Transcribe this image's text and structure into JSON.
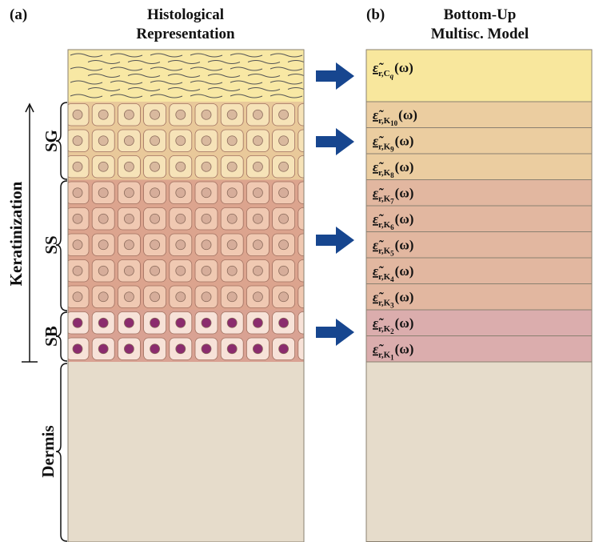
{
  "panel_a": {
    "label": "(a)",
    "title": [
      "Histological",
      "Representation"
    ],
    "strata": {
      "sg": "SG",
      "ss": "SS",
      "sb": "SB"
    },
    "keratinization": "Keratinization",
    "dermis": "Dermis"
  },
  "panel_b": {
    "label": "(b)",
    "title": [
      "Bottom-Up",
      "Multisc. Model"
    ],
    "symbol": "ε̃",
    "argument": "(ω)",
    "layers": [
      {
        "sub": "r,C",
        "index": "q"
      },
      {
        "sub": "r,K",
        "index": "10"
      },
      {
        "sub": "r,K",
        "index": "9"
      },
      {
        "sub": "r,K",
        "index": "8"
      },
      {
        "sub": "r,K",
        "index": "7"
      },
      {
        "sub": "r,K",
        "index": "6"
      },
      {
        "sub": "r,K",
        "index": "5"
      },
      {
        "sub": "r,K",
        "index": "4"
      },
      {
        "sub": "r,K",
        "index": "3"
      },
      {
        "sub": "r,K",
        "index": "2"
      },
      {
        "sub": "r,K",
        "index": "1"
      }
    ]
  }
}
